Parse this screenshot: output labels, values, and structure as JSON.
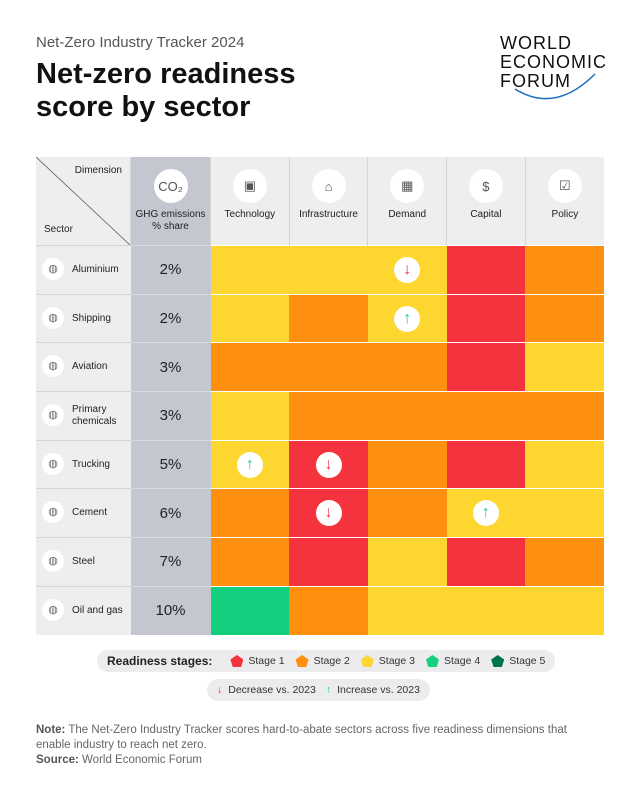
{
  "header": {
    "kicker": "Net-Zero Industry Tracker 2024",
    "title": "Net-zero readiness score by sector",
    "logo": "WORLD ECONOMIC FORUM"
  },
  "colors": {
    "stage1": "#f5333f",
    "stage2": "#fe8f0f",
    "stage3": "#fdd630",
    "stage4": "#13cf7e",
    "stage5": "#00744b",
    "decrease": "#f5333f",
    "increase": "#13cf7e"
  },
  "chart_data": {
    "type": "table",
    "title": "Net-zero readiness score by sector",
    "corner": {
      "dimension": "Dimension",
      "sector": "Sector"
    },
    "ghg_header": "GHG emissions % share",
    "dimensions": [
      {
        "label": "Technology",
        "icon": "chip-icon"
      },
      {
        "label": "Infrastructure",
        "icon": "power-pylon-icon"
      },
      {
        "label": "Demand",
        "icon": "boxes-icon"
      },
      {
        "label": "Capital",
        "icon": "dollar-cycle-icon"
      },
      {
        "label": "Policy",
        "icon": "checklist-icon"
      }
    ],
    "rows": [
      {
        "sector": "Aluminium",
        "share": "2%",
        "stages": [
          3,
          3,
          3,
          1,
          2
        ],
        "changes": [
          "",
          "",
          "down",
          "",
          ""
        ]
      },
      {
        "sector": "Shipping",
        "share": "2%",
        "stages": [
          3,
          2,
          3,
          1,
          2
        ],
        "changes": [
          "",
          "",
          "up",
          "",
          ""
        ]
      },
      {
        "sector": "Aviation",
        "share": "3%",
        "stages": [
          2,
          2,
          2,
          1,
          3
        ],
        "changes": [
          "",
          "",
          "",
          "",
          ""
        ]
      },
      {
        "sector": "Primary chemicals",
        "share": "3%",
        "stages": [
          3,
          2,
          2,
          2,
          2
        ],
        "changes": [
          "",
          "",
          "",
          "",
          ""
        ]
      },
      {
        "sector": "Trucking",
        "share": "5%",
        "stages": [
          3,
          1,
          2,
          1,
          3
        ],
        "changes": [
          "up",
          "down",
          "",
          "",
          ""
        ]
      },
      {
        "sector": "Cement",
        "share": "6%",
        "stages": [
          2,
          1,
          2,
          3,
          3
        ],
        "changes": [
          "",
          "down",
          "",
          "up",
          ""
        ]
      },
      {
        "sector": "Steel",
        "share": "7%",
        "stages": [
          2,
          1,
          3,
          1,
          2
        ],
        "changes": [
          "",
          "",
          "",
          "",
          ""
        ]
      },
      {
        "sector": "Oil and gas",
        "share": "10%",
        "stages": [
          4,
          2,
          3,
          3,
          3
        ],
        "changes": [
          "",
          "",
          "",
          "",
          ""
        ]
      }
    ]
  },
  "legend": {
    "title": "Readiness stages:",
    "stages": [
      "Stage 1",
      "Stage 2",
      "Stage 3",
      "Stage 4",
      "Stage 5"
    ],
    "decrease": "Decrease vs. 2023",
    "increase": "Increase vs. 2023"
  },
  "footer": {
    "note_label": "Note:",
    "note": "The Net-Zero Industry Tracker scores hard-to-abate sectors across five readiness dimensions that enable industry to reach net zero.",
    "source_label": "Source:",
    "source": "World Economic Forum"
  }
}
